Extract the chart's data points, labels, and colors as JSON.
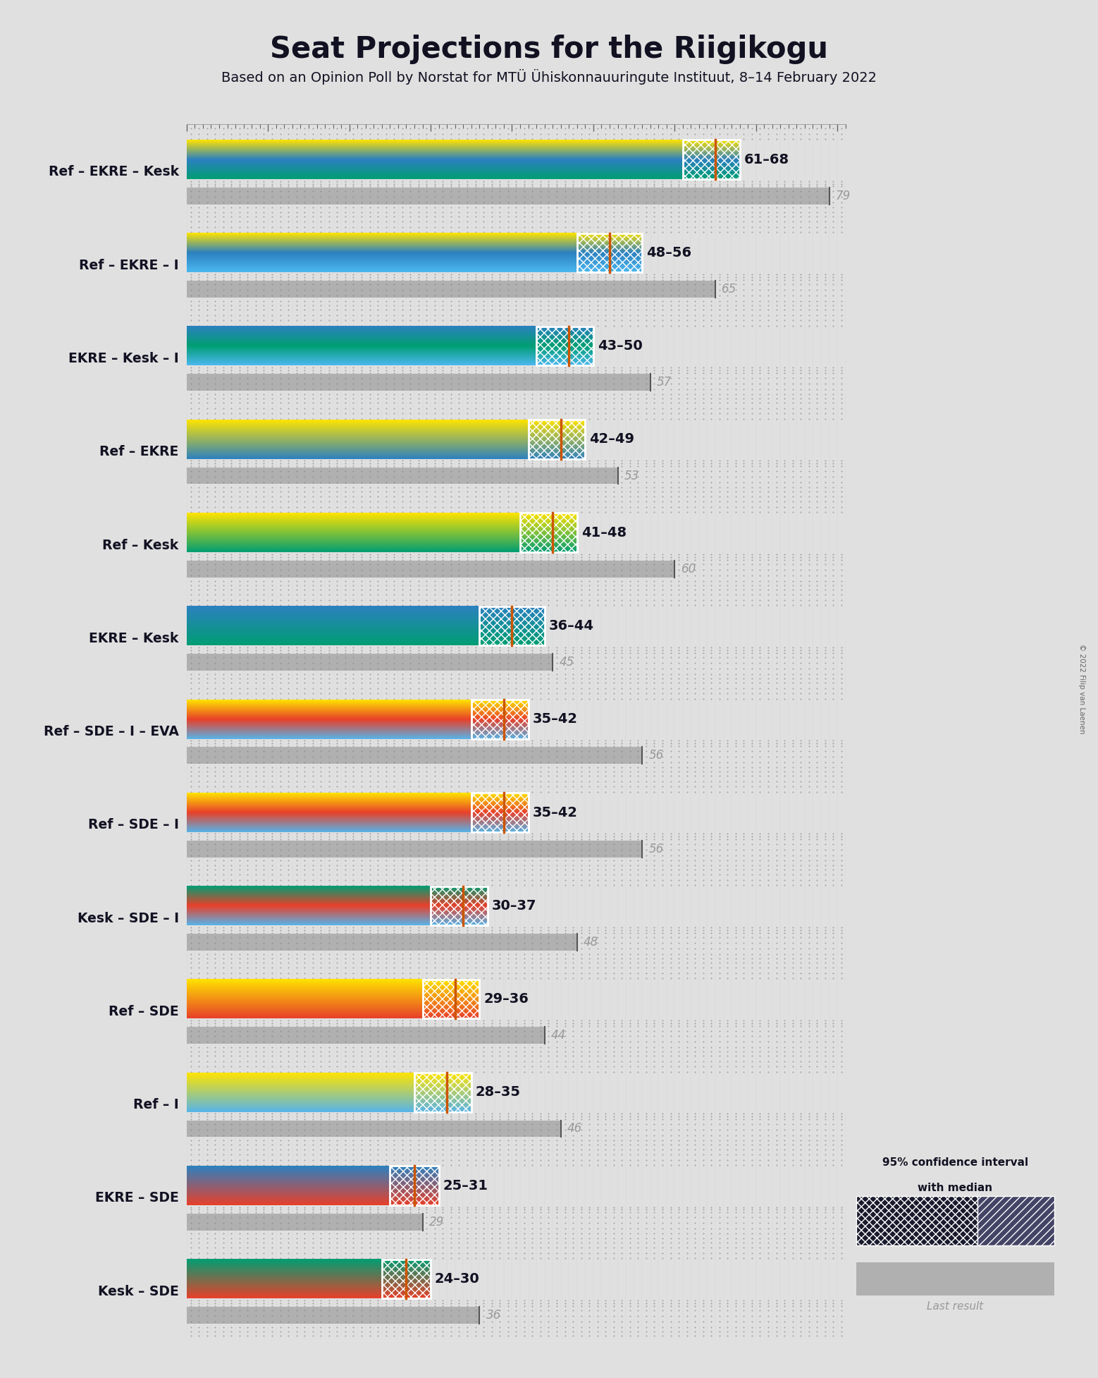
{
  "title": "Seat Projections for the Riigikogu",
  "subtitle": "Based on an Opinion Poll by Norstat for MTÜ Ühiskonnauuringute Instituut, 8–14 February 2022",
  "copyright": "© 2022 Filip van Laenen",
  "coalitions": [
    {
      "name": "Ref – EKRE – Kesk",
      "underline": false,
      "ci_low": 61,
      "ci_high": 68,
      "median": 65,
      "last": 79,
      "colors": [
        "#FFE400",
        "#2C81C0",
        "#009E73"
      ]
    },
    {
      "name": "Ref – EKRE – I",
      "underline": false,
      "ci_low": 48,
      "ci_high": 56,
      "median": 52,
      "last": 65,
      "colors": [
        "#FFE400",
        "#2C81C0",
        "#4BB8F0"
      ]
    },
    {
      "name": "EKRE – Kesk – I",
      "underline": true,
      "ci_low": 43,
      "ci_high": 50,
      "median": 47,
      "last": 57,
      "colors": [
        "#2C81C0",
        "#009E73",
        "#4BB8F0"
      ]
    },
    {
      "name": "Ref – EKRE",
      "underline": false,
      "ci_low": 42,
      "ci_high": 49,
      "median": 46,
      "last": 53,
      "colors": [
        "#FFE400",
        "#2C81C0"
      ]
    },
    {
      "name": "Ref – Kesk",
      "underline": false,
      "ci_low": 41,
      "ci_high": 48,
      "median": 45,
      "last": 60,
      "colors": [
        "#FFE400",
        "#009E73"
      ]
    },
    {
      "name": "EKRE – Kesk",
      "underline": false,
      "ci_low": 36,
      "ci_high": 44,
      "median": 40,
      "last": 45,
      "colors": [
        "#2C81C0",
        "#009E73"
      ]
    },
    {
      "name": "Ref – SDE – I – EVA",
      "underline": false,
      "ci_low": 35,
      "ci_high": 42,
      "median": 39,
      "last": 56,
      "colors": [
        "#FFE400",
        "#E8402A",
        "#56B4E9"
      ]
    },
    {
      "name": "Ref – SDE – I",
      "underline": false,
      "ci_low": 35,
      "ci_high": 42,
      "median": 39,
      "last": 56,
      "colors": [
        "#FFE400",
        "#E8402A",
        "#56B4E9"
      ]
    },
    {
      "name": "Kesk – SDE – I",
      "underline": false,
      "ci_low": 30,
      "ci_high": 37,
      "median": 34,
      "last": 48,
      "colors": [
        "#009E73",
        "#E8402A",
        "#56B4E9"
      ]
    },
    {
      "name": "Ref – SDE",
      "underline": false,
      "ci_low": 29,
      "ci_high": 36,
      "median": 33,
      "last": 44,
      "colors": [
        "#FFE400",
        "#E8402A"
      ]
    },
    {
      "name": "Ref – I",
      "underline": false,
      "ci_low": 28,
      "ci_high": 35,
      "median": 32,
      "last": 46,
      "colors": [
        "#FFE400",
        "#56B4E9"
      ]
    },
    {
      "name": "EKRE – SDE",
      "underline": false,
      "ci_low": 25,
      "ci_high": 31,
      "median": 28,
      "last": 29,
      "colors": [
        "#2C81C0",
        "#E8402A"
      ]
    },
    {
      "name": "Kesk – SDE",
      "underline": false,
      "ci_low": 24,
      "ci_high": 30,
      "median": 27,
      "last": 36,
      "colors": [
        "#009E73",
        "#E8402A"
      ]
    }
  ],
  "x_max": 81,
  "background_color": "#E0E0E0",
  "dotgrid_color": "#AAAAAA",
  "median_line_color": "#CC5500",
  "label_color": "#111122",
  "last_label_color": "#999999",
  "ci_hatch_color": "white",
  "gray_bar_color": "#B0B0B0",
  "legend_ci_color": "#1A1A2E"
}
